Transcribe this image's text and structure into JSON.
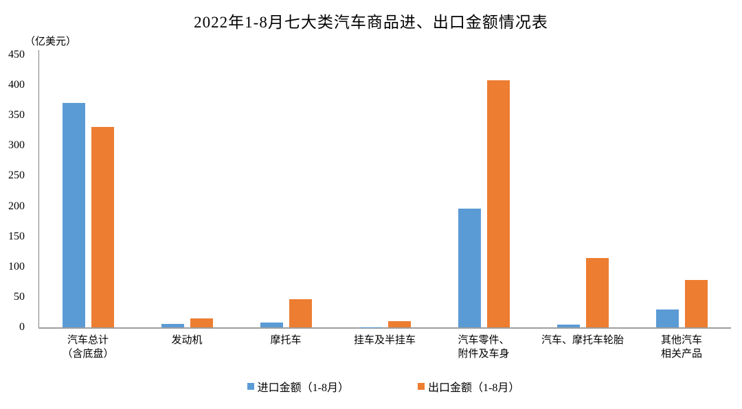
{
  "chart_data": {
    "type": "bar",
    "title": "2022年1-8月七大类汽车商品进、出口金额情况表",
    "unit_label": "（亿美元）",
    "categories": [
      [
        "汽车总计",
        "（含底盘）"
      ],
      [
        "发动机"
      ],
      [
        "摩托车"
      ],
      [
        "挂车及半挂车"
      ],
      [
        "汽车零件、",
        "附件及车身"
      ],
      [
        "汽车、摩托车轮胎"
      ],
      [
        "其他汽车",
        "相关产品"
      ]
    ],
    "series": [
      {
        "name": "进口金额（1-8月）",
        "color": "#5B9BD5",
        "values": [
          371,
          6,
          8,
          0.4,
          196,
          5,
          29
        ]
      },
      {
        "name": "出口金额（1-8月）",
        "color": "#ED7D31",
        "values": [
          331,
          15,
          47,
          10,
          408,
          114,
          78
        ]
      }
    ],
    "ylim": [
      0,
      450
    ],
    "yticks": [
      0,
      50,
      100,
      150,
      200,
      250,
      300,
      350,
      400,
      450
    ],
    "ylabel": "",
    "xlabel": "",
    "grid": false,
    "legend_position": "bottom",
    "axis_color": "#7f7f7f",
    "background_color": "#ffffff"
  }
}
